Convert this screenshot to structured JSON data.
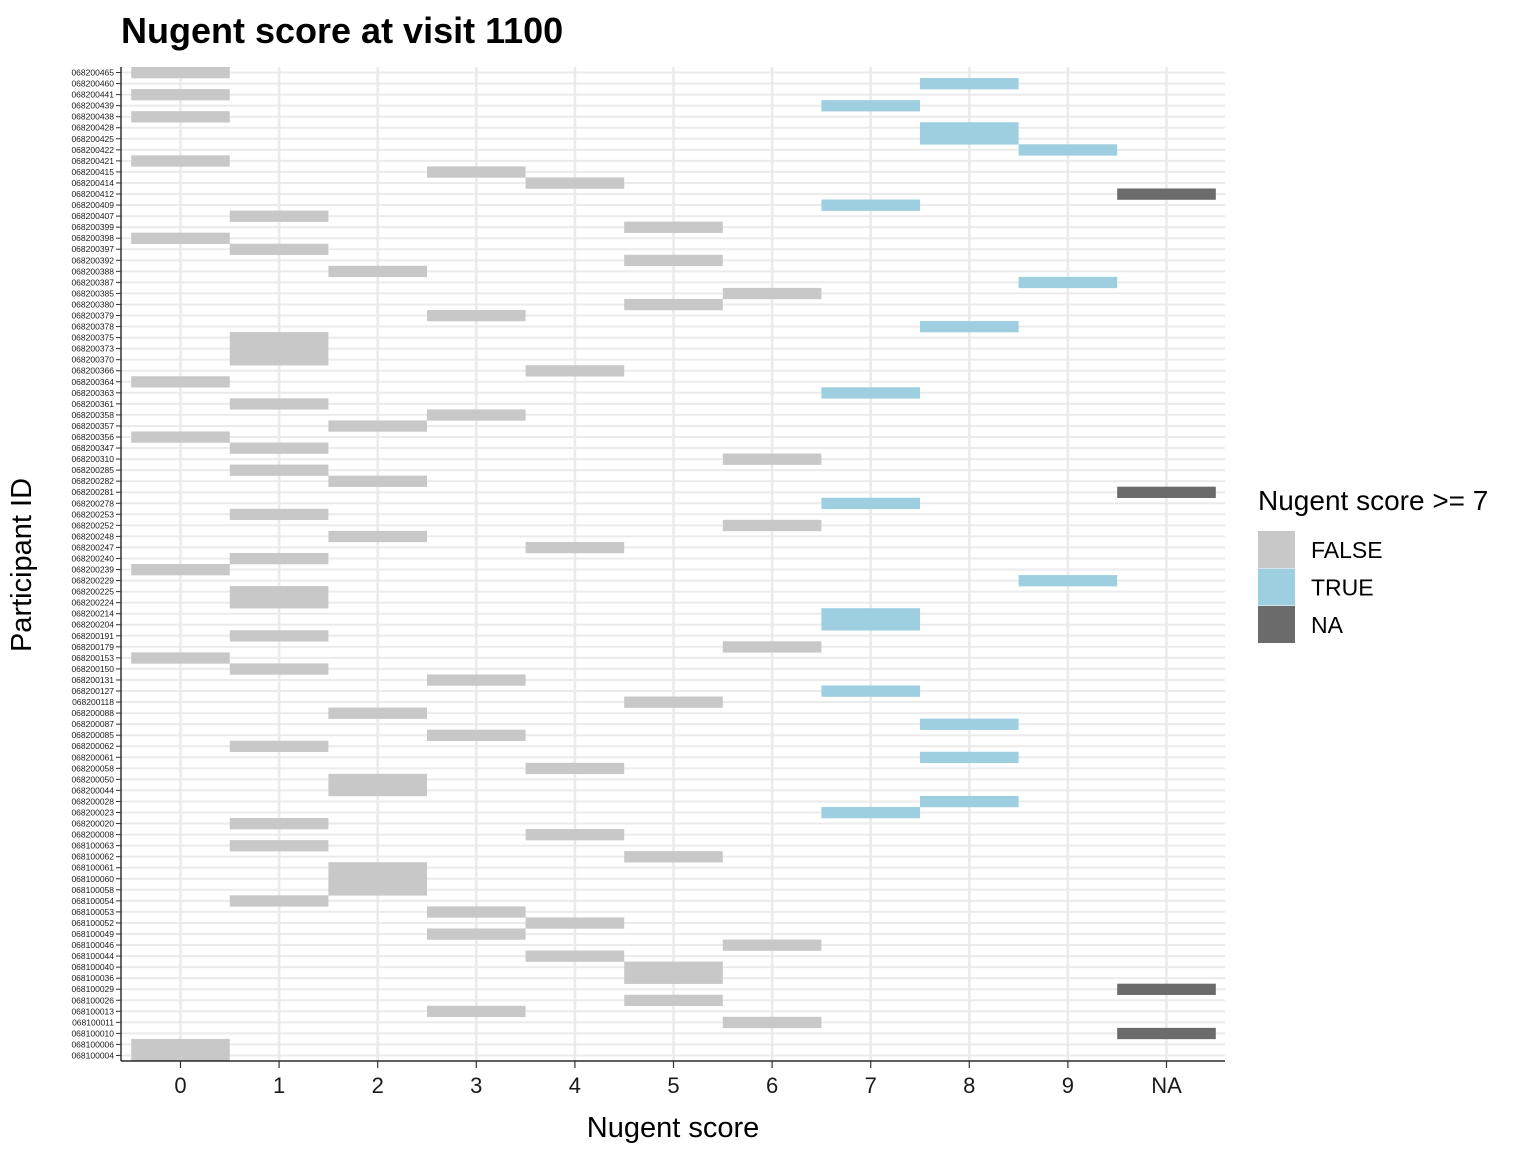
{
  "chart_data": {
    "type": "heatmap",
    "title": "Nugent score at visit 1100",
    "xlabel": "Nugent score",
    "ylabel": "Participant ID",
    "x_categories": [
      "0",
      "1",
      "2",
      "3",
      "4",
      "5",
      "6",
      "7",
      "8",
      "9",
      "NA"
    ],
    "legend": {
      "title": "Nugent score >= 7",
      "position": "right",
      "entries": [
        {
          "label": "FALSE",
          "color": "#c8c8c8"
        },
        {
          "label": "TRUE",
          "color": "#9ecfe0"
        },
        {
          "label": "NA",
          "color": "#6b6b6b"
        }
      ]
    },
    "grid": true,
    "participants": [
      {
        "id": "068100004",
        "score": "0"
      },
      {
        "id": "068100006",
        "score": "0"
      },
      {
        "id": "068100010",
        "score": "NA"
      },
      {
        "id": "068100011",
        "score": "6"
      },
      {
        "id": "068100013",
        "score": "3"
      },
      {
        "id": "068100026",
        "score": "5"
      },
      {
        "id": "068100029",
        "score": "NA"
      },
      {
        "id": "068100036",
        "score": "5"
      },
      {
        "id": "068100040",
        "score": "5"
      },
      {
        "id": "068100044",
        "score": "4"
      },
      {
        "id": "068100046",
        "score": "6"
      },
      {
        "id": "068100049",
        "score": "3"
      },
      {
        "id": "068100052",
        "score": "4"
      },
      {
        "id": "068100053",
        "score": "3"
      },
      {
        "id": "068100054",
        "score": "1"
      },
      {
        "id": "068100058",
        "score": "2"
      },
      {
        "id": "068100060",
        "score": "2"
      },
      {
        "id": "068100061",
        "score": "2"
      },
      {
        "id": "068100062",
        "score": "5"
      },
      {
        "id": "068100063",
        "score": "1"
      },
      {
        "id": "068200008",
        "score": "4"
      },
      {
        "id": "068200020",
        "score": "1"
      },
      {
        "id": "068200023",
        "score": "7"
      },
      {
        "id": "068200028",
        "score": "8"
      },
      {
        "id": "068200044",
        "score": "2"
      },
      {
        "id": "068200050",
        "score": "2"
      },
      {
        "id": "068200058",
        "score": "4"
      },
      {
        "id": "068200061",
        "score": "8"
      },
      {
        "id": "068200062",
        "score": "1"
      },
      {
        "id": "068200085",
        "score": "3"
      },
      {
        "id": "068200087",
        "score": "8"
      },
      {
        "id": "068200088",
        "score": "2"
      },
      {
        "id": "068200118",
        "score": "5"
      },
      {
        "id": "068200127",
        "score": "7"
      },
      {
        "id": "068200131",
        "score": "3"
      },
      {
        "id": "068200150",
        "score": "1"
      },
      {
        "id": "068200153",
        "score": "0"
      },
      {
        "id": "068200179",
        "score": "6"
      },
      {
        "id": "068200191",
        "score": "1"
      },
      {
        "id": "068200204",
        "score": "7"
      },
      {
        "id": "068200214",
        "score": "7"
      },
      {
        "id": "068200224",
        "score": "1"
      },
      {
        "id": "068200225",
        "score": "1"
      },
      {
        "id": "068200229",
        "score": "9"
      },
      {
        "id": "068200239",
        "score": "0"
      },
      {
        "id": "068200240",
        "score": "1"
      },
      {
        "id": "068200247",
        "score": "4"
      },
      {
        "id": "068200248",
        "score": "2"
      },
      {
        "id": "068200252",
        "score": "6"
      },
      {
        "id": "068200253",
        "score": "1"
      },
      {
        "id": "068200278",
        "score": "7"
      },
      {
        "id": "068200281",
        "score": "NA"
      },
      {
        "id": "068200282",
        "score": "2"
      },
      {
        "id": "068200285",
        "score": "1"
      },
      {
        "id": "068200310",
        "score": "6"
      },
      {
        "id": "068200347",
        "score": "1"
      },
      {
        "id": "068200356",
        "score": "0"
      },
      {
        "id": "068200357",
        "score": "2"
      },
      {
        "id": "068200358",
        "score": "3"
      },
      {
        "id": "068200361",
        "score": "1"
      },
      {
        "id": "068200363",
        "score": "7"
      },
      {
        "id": "068200364",
        "score": "0"
      },
      {
        "id": "068200366",
        "score": "4"
      },
      {
        "id": "068200370",
        "score": "1"
      },
      {
        "id": "068200373",
        "score": "1"
      },
      {
        "id": "068200375",
        "score": "1"
      },
      {
        "id": "068200378",
        "score": "8"
      },
      {
        "id": "068200379",
        "score": "3"
      },
      {
        "id": "068200380",
        "score": "5"
      },
      {
        "id": "068200385",
        "score": "6"
      },
      {
        "id": "068200387",
        "score": "9"
      },
      {
        "id": "068200388",
        "score": "2"
      },
      {
        "id": "068200392",
        "score": "5"
      },
      {
        "id": "068200397",
        "score": "1"
      },
      {
        "id": "068200398",
        "score": "0"
      },
      {
        "id": "068200399",
        "score": "5"
      },
      {
        "id": "068200407",
        "score": "1"
      },
      {
        "id": "068200409",
        "score": "7"
      },
      {
        "id": "068200412",
        "score": "NA"
      },
      {
        "id": "068200414",
        "score": "4"
      },
      {
        "id": "068200415",
        "score": "3"
      },
      {
        "id": "068200421",
        "score": "0"
      },
      {
        "id": "068200422",
        "score": "9"
      },
      {
        "id": "068200425",
        "score": "8"
      },
      {
        "id": "068200428",
        "score": "8"
      },
      {
        "id": "068200438",
        "score": "0"
      },
      {
        "id": "068200439",
        "score": "7"
      },
      {
        "id": "068200441",
        "score": "0"
      },
      {
        "id": "068200460",
        "score": "8"
      },
      {
        "id": "068200465",
        "score": "0"
      }
    ]
  }
}
